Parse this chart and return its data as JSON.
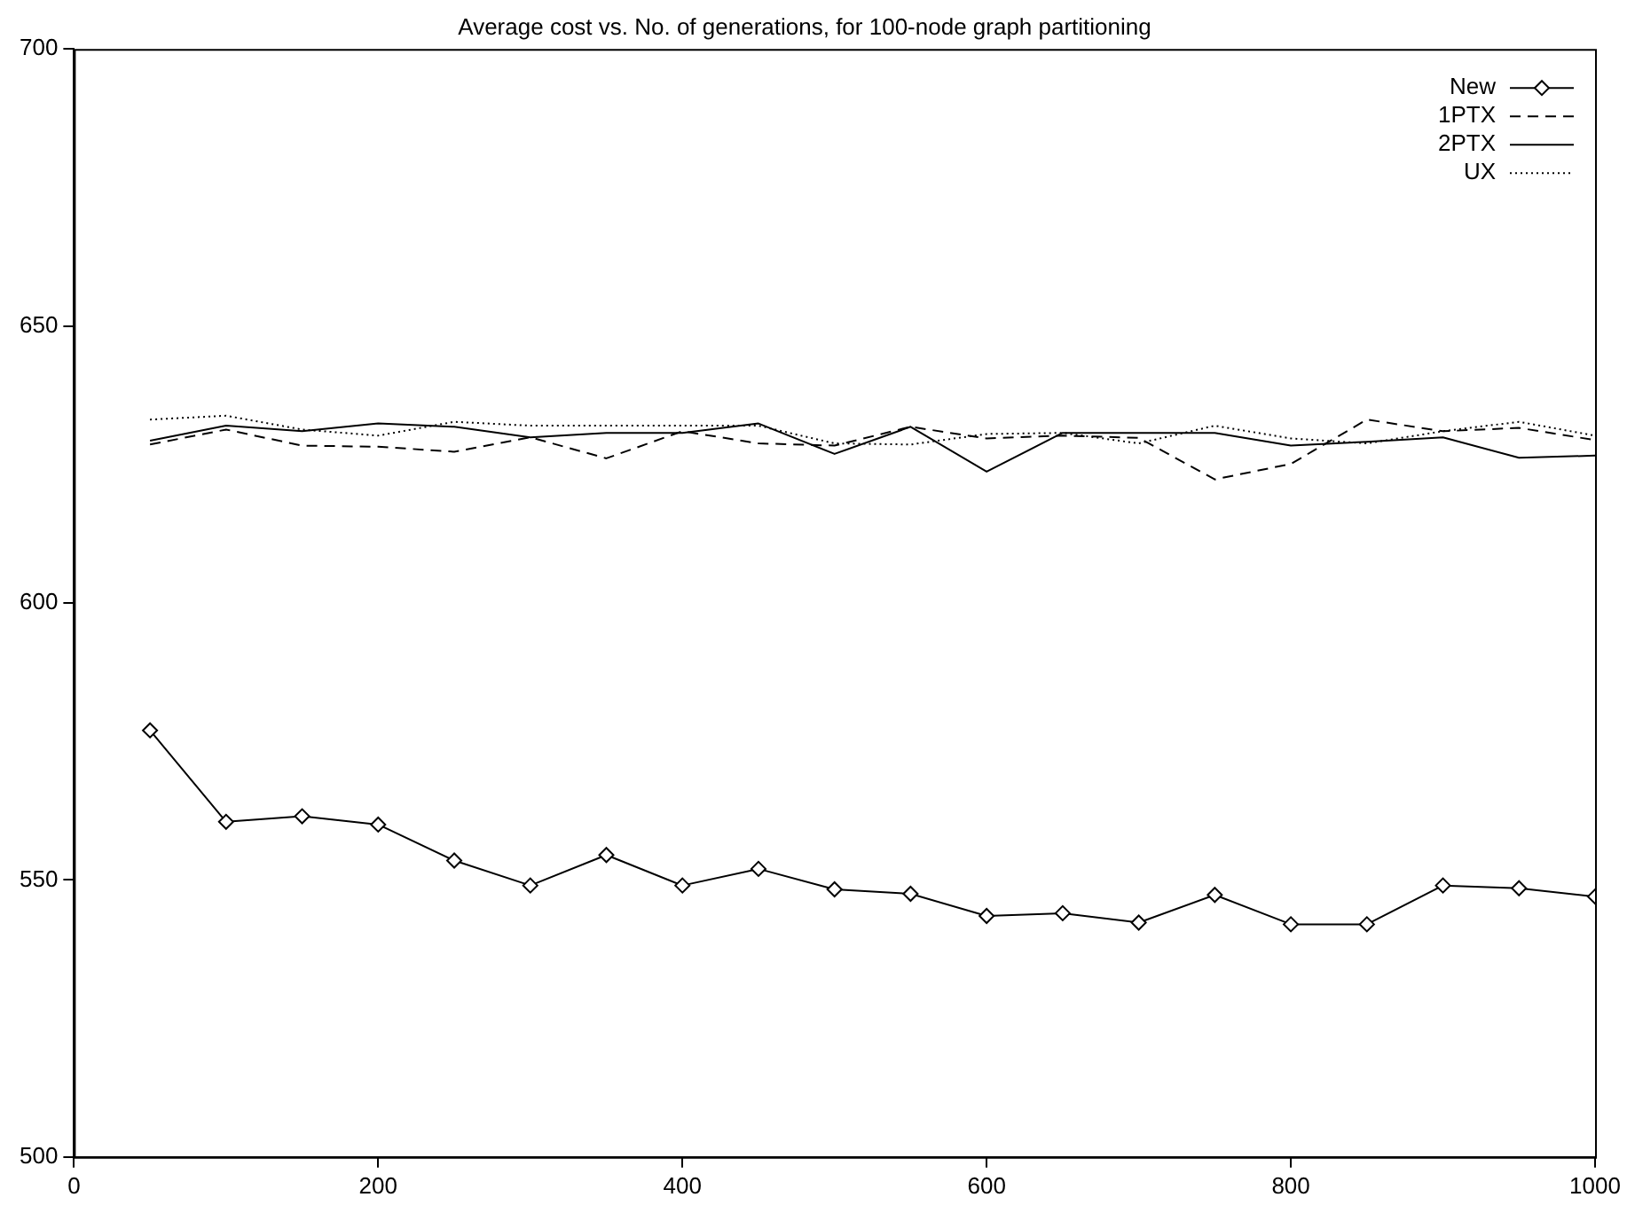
{
  "chart_data": {
    "type": "line",
    "title": "Average cost vs. No. of generations, for 100-node graph partitioning",
    "x": [
      50,
      100,
      150,
      200,
      250,
      300,
      350,
      400,
      450,
      500,
      550,
      600,
      650,
      700,
      750,
      800,
      850,
      900,
      950,
      1000
    ],
    "series": [
      {
        "name": "New",
        "color": "#000000",
        "marker": "diamond",
        "line_style": "solid",
        "values": [
          577,
          560.5,
          561.5,
          560,
          553.5,
          549,
          554.5,
          549,
          552,
          548.3,
          547.5,
          543.5,
          544,
          542.3,
          547.3,
          542,
          542,
          549,
          548.5,
          547
        ]
      },
      {
        "name": "1PTX",
        "color": "#000000",
        "marker": "none",
        "line_style": "dashed",
        "values": [
          628.6,
          631.3,
          628.4,
          628.2,
          627.3,
          629.9,
          626.1,
          631,
          628.8,
          628.4,
          631.8,
          629.7,
          630.2,
          629.8,
          622.3,
          625.1,
          633.1,
          631,
          631.6,
          629.4
        ]
      },
      {
        "name": "2PTX",
        "color": "#000000",
        "marker": "none",
        "line_style": "solid",
        "values": [
          629.3,
          632,
          631,
          632.4,
          631.8,
          629.9,
          630.7,
          630.7,
          632.4,
          626.9,
          631.8,
          623.7,
          630.7,
          630.7,
          630.7,
          628.4,
          629.1,
          629.9,
          626.2,
          626.6
        ]
      },
      {
        "name": "UX",
        "color": "#000000",
        "marker": "none",
        "line_style": "dotted",
        "values": [
          633.1,
          633.8,
          631.3,
          630.2,
          632.7,
          632,
          632,
          632,
          632,
          628.8,
          628.6,
          630.5,
          630.7,
          628.8,
          632,
          629.7,
          628.8,
          631,
          632.7,
          630.2
        ]
      }
    ],
    "xlim": [
      0,
      1000
    ],
    "xticks": [
      0,
      200,
      400,
      600,
      800,
      1000
    ],
    "ylim": [
      500,
      700
    ],
    "yticks": [
      500,
      550,
      600,
      650,
      700
    ],
    "grid": false,
    "legend": "top right"
  }
}
